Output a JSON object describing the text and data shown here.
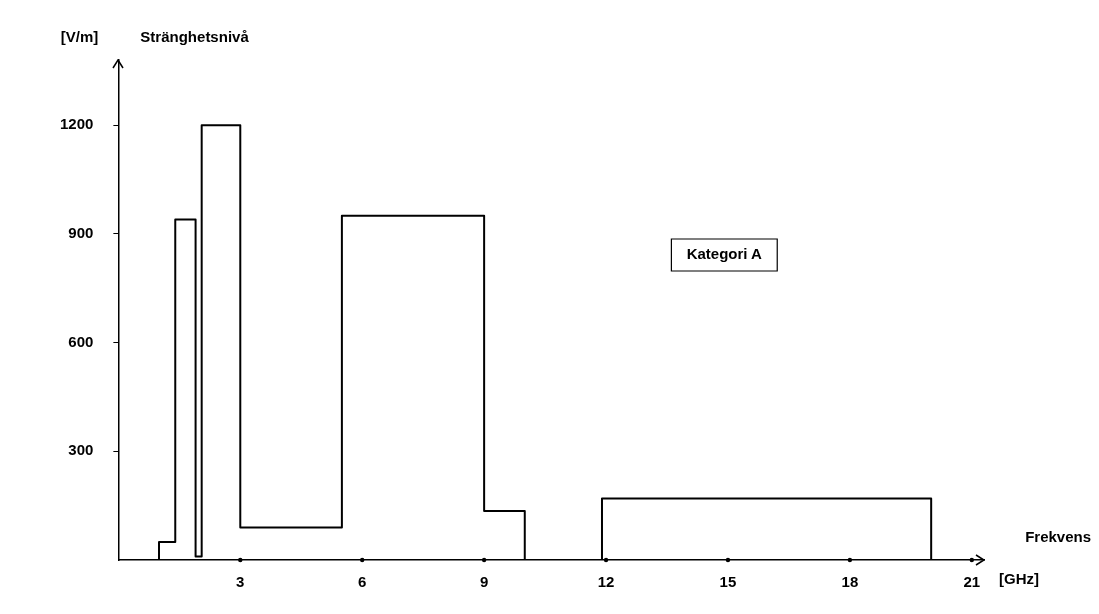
{
  "chart_data": {
    "type": "step",
    "xlabel": "Frekvens",
    "ylabel": "Stränghetsnivå",
    "annotations": [
      "[V/m]",
      "[GHz]",
      "Kategori A"
    ],
    "x": [
      0,
      1,
      1.4,
      1.9,
      2.05,
      3,
      5.5,
      9,
      10,
      11.9,
      20
    ],
    "series": [
      {
        "color": "#000000",
        "values": [
          0,
          50,
          940,
          10,
          1200,
          90,
          950,
          135,
          0,
          170,
          0
        ]
      }
    ],
    "xlim": [
      0,
      21.3
    ],
    "xticks": [
      3,
      6,
      9,
      12,
      15,
      18,
      21
    ],
    "ylim": [
      0,
      1380
    ],
    "yticks": [
      300,
      600,
      900,
      1200
    ],
    "grid": false,
    "legend": false,
    "marker": "none",
    "line_style": "solid"
  }
}
